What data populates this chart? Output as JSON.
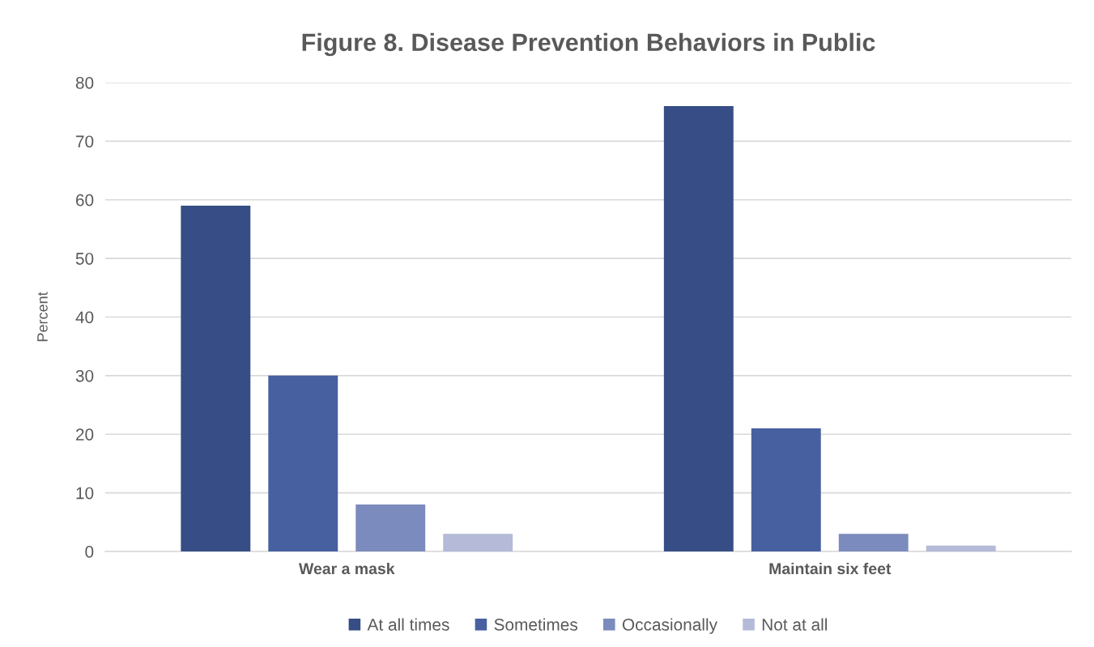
{
  "chart_data": {
    "type": "bar",
    "title": "Figure 8. Disease Prevention Behaviors in Public",
    "ylabel": "Percent",
    "categories": [
      "Wear a mask",
      "Maintain six feet"
    ],
    "series": [
      {
        "name": "At all times",
        "color": "#364e85",
        "values": [
          59,
          76
        ]
      },
      {
        "name": "Sometimes",
        "color": "#4660a0",
        "values": [
          30,
          21
        ]
      },
      {
        "name": "Occasionally",
        "color": "#7c8bbd",
        "values": [
          8,
          3
        ]
      },
      {
        "name": "Not at all",
        "color": "#b4bad8",
        "values": [
          3,
          1
        ]
      }
    ],
    "ylim": [
      0,
      80
    ],
    "yticks": [
      0,
      10,
      20,
      30,
      40,
      50,
      60,
      70,
      80
    ],
    "grid": "y",
    "legend": "bottom"
  }
}
